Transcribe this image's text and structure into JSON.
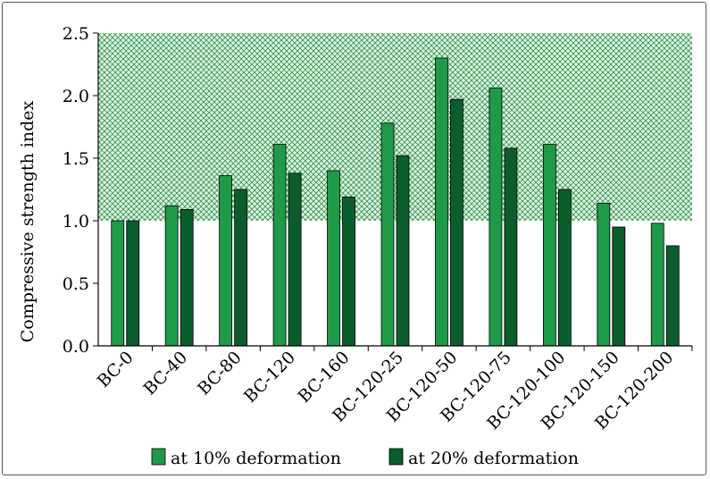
{
  "chart_data": {
    "type": "bar",
    "title": "",
    "xlabel": "",
    "ylabel": "Compressive strength index",
    "ylim": [
      0,
      2.5
    ],
    "yticks": [
      "0.0",
      "0.5",
      "1.0",
      "1.5",
      "2.0",
      "2.5"
    ],
    "categories": [
      "BC-0",
      "BC-40",
      "BC-80",
      "BC-120",
      "BC-160",
      "BC-120-25",
      "BC-120-50",
      "BC-120-75",
      "BC-120-100",
      "BC-120-150",
      "BC-120-200"
    ],
    "series": [
      {
        "name": "at 10% deformation",
        "color": "#1f9a48",
        "values": [
          1.0,
          1.12,
          1.36,
          1.61,
          1.4,
          1.78,
          2.3,
          2.06,
          1.61,
          1.14,
          0.98
        ]
      },
      {
        "name": "at 20% deformation",
        "color": "#0b5e2c",
        "values": [
          1.0,
          1.09,
          1.25,
          1.38,
          1.19,
          1.52,
          1.97,
          1.58,
          1.25,
          0.95,
          0.8
        ]
      }
    ],
    "shaded_region": {
      "from": 1.0,
      "to": 2.5,
      "color": "#2e9b4a"
    },
    "legend_position": "bottom"
  }
}
